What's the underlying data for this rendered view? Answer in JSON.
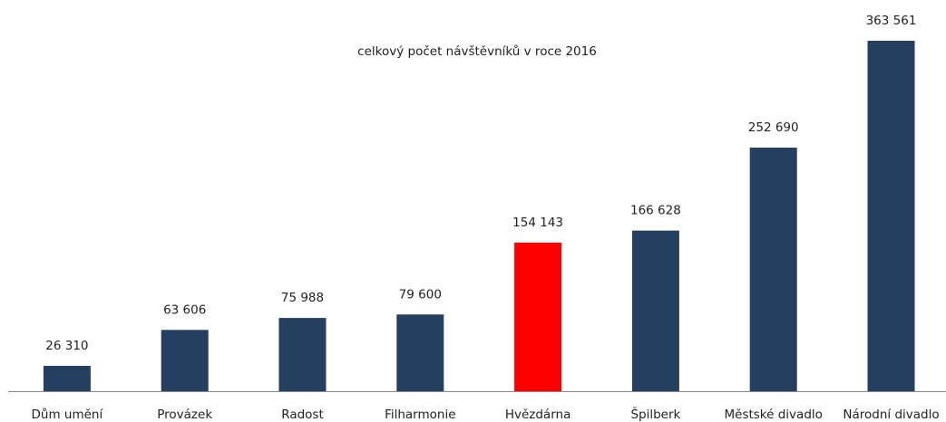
{
  "chart_data": {
    "type": "bar",
    "title": "celkový počet návštěvníků v roce 2016",
    "categories": [
      "Dům umění",
      "Provázek",
      "Radost",
      "Filharmonie",
      "Hvězdárna",
      "Špilberk",
      "Městské divadlo",
      "Národní divadlo"
    ],
    "values": [
      26310,
      63606,
      75988,
      79600,
      154143,
      166628,
      252690,
      363561
    ],
    "value_labels": [
      "26 310",
      "63 606",
      "75 988",
      "79 600",
      "154 143",
      "166 628",
      "252 690",
      "363 561"
    ],
    "colors": [
      "#243f60",
      "#243f60",
      "#243f60",
      "#243f60",
      "#ff0000",
      "#243f60",
      "#243f60",
      "#243f60"
    ]
  }
}
